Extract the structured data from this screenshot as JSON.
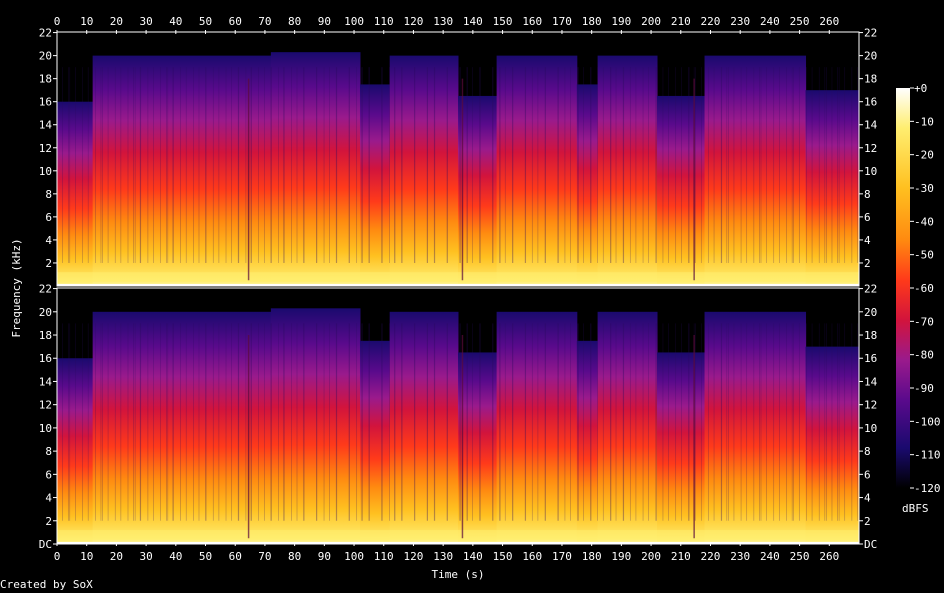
{
  "credit": "Created by SoX",
  "chart_data": {
    "type": "heatmap",
    "xlabel": "Time (s)",
    "ylabel": "Frequency (kHz)",
    "xlim": [
      0,
      270
    ],
    "ylim": [
      0,
      22.05
    ],
    "x_ticks": [
      "0",
      "10",
      "20",
      "30",
      "40",
      "50",
      "60",
      "70",
      "80",
      "90",
      "100",
      "110",
      "120",
      "130",
      "140",
      "150",
      "160",
      "170",
      "180",
      "190",
      "200",
      "210",
      "220",
      "230",
      "240",
      "250",
      "260"
    ],
    "y_ticks": [
      "DC",
      "2",
      "4",
      "6",
      "8",
      "10",
      "12",
      "14",
      "16",
      "18",
      "20",
      "22"
    ],
    "channels": 2,
    "colorbar": {
      "label": "dBFS",
      "ticks": [
        "+0",
        "-10",
        "-20",
        "-30",
        "-40",
        "-50",
        "-60",
        "-70",
        "-80",
        "-90",
        "-100",
        "-110",
        "-120"
      ],
      "range": [
        -120,
        0
      ]
    },
    "colormap": [
      "#000000",
      "#1a0a6e",
      "#5a0a8c",
      "#9a1a8c",
      "#d2143c",
      "#ff3a1a",
      "#ff8a10",
      "#ffc020",
      "#ffee70",
      "#ffffff"
    ],
    "bandwidth_segments_khz": [
      {
        "t0": 0,
        "t1": 12,
        "cutoff": 16
      },
      {
        "t0": 12,
        "t1": 72,
        "cutoff": 20
      },
      {
        "t0": 72,
        "t1": 102,
        "cutoff": 20.3
      },
      {
        "t0": 102,
        "t1": 112,
        "cutoff": 17.5
      },
      {
        "t0": 112,
        "t1": 135,
        "cutoff": 20
      },
      {
        "t0": 135,
        "t1": 148,
        "cutoff": 16.5
      },
      {
        "t0": 148,
        "t1": 175,
        "cutoff": 20
      },
      {
        "t0": 175,
        "t1": 182,
        "cutoff": 17.5
      },
      {
        "t0": 182,
        "t1": 202,
        "cutoff": 20
      },
      {
        "t0": 202,
        "t1": 218,
        "cutoff": 16.5
      },
      {
        "t0": 218,
        "t1": 252,
        "cutoff": 20
      },
      {
        "t0": 252,
        "t1": 270,
        "cutoff": 17
      }
    ]
  }
}
